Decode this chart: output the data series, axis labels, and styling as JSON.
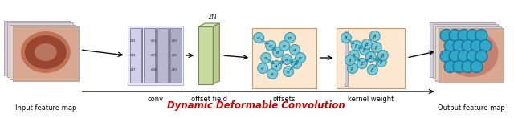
{
  "title": "Dynamic Deformable Convolution",
  "title_color": "#cc0000",
  "input_label": "Input feature map",
  "output_label": "Output feature map",
  "labels": [
    "conv",
    "offset field",
    "offsets",
    "kernel weight"
  ],
  "fig_width": 6.4,
  "fig_height": 1.47,
  "conv_colors": [
    "#d0d0e8",
    "#c4c4dc",
    "#b8b8d0",
    "#acacc4"
  ],
  "offset_field_color": "#ccdcaa",
  "offsets_bg": "#fce8d0",
  "kernel_bg": "#fce8d0",
  "teal_face": "#6cc8d8",
  "teal_edge": "#2888a0",
  "fm_top_color": "#d8a890",
  "fm_layer_colors": [
    "#e8d0c0",
    "#e0c4b0",
    "#d8b8a8"
  ],
  "fm_edge_color": "#aaaaaa",
  "lesion_color1": "#a04030",
  "lesion_color2": "#7a2818",
  "output_lesion": "#c06050",
  "output_teal_face": "#30a8c8",
  "output_teal_edge": "#1870a0",
  "arrow_color": "#111111",
  "label_fontsize": 6.0,
  "title_fontsize": 8.5
}
